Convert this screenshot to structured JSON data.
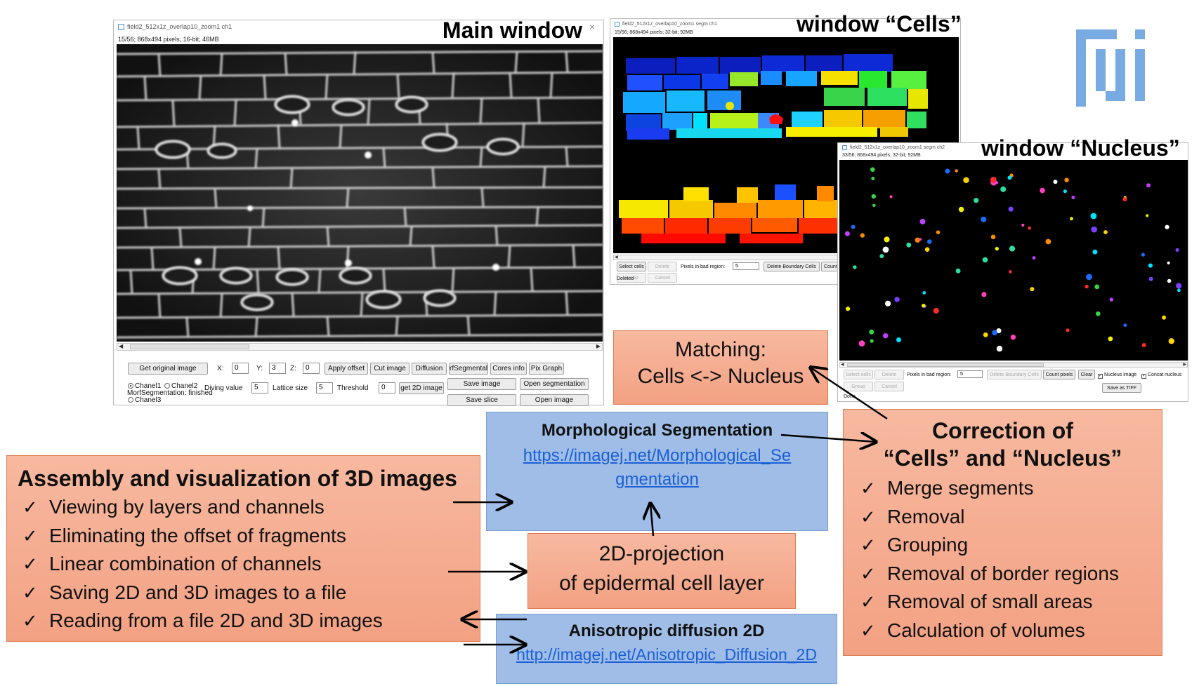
{
  "main_window": {
    "title": "field2_512x1z_overlap10_zoom1 ch1",
    "info": "15/56; 868x494 pixels; 16-bit; 46MB",
    "label": "Main window",
    "close_glyph": "×",
    "buttons": [
      "Get original image",
      "Apply offset",
      "Cut image",
      "Diffusion",
      "rfSegmental",
      "Cores info",
      "Pix Graph",
      "get 2D image",
      "Save image",
      "Open segmentation",
      "Save slice",
      "Open image"
    ],
    "fields": {
      "x_label": "X:",
      "x": "0",
      "y_label": "Y:",
      "y": "3",
      "z_label": "Z:",
      "z": "0",
      "diving_label": "Diving value",
      "diving": "5",
      "lattice_label": "Lattice size",
      "lattice": "5",
      "threshold_label": "Threshold",
      "threshold": "0"
    },
    "channels": [
      "Chanel1",
      "Chanel2",
      "Chanel3"
    ],
    "status": "MorfSegmentation: finished"
  },
  "cells_window": {
    "title": "field2_512x1z_overlap10_zoom1 segm ch1",
    "info": "15/56; 868x494 pixels; 32-bit; 92MB",
    "label": "window “Cells”",
    "buttons": [
      "Select cells",
      "Delete",
      "Group",
      "Cancel",
      "Delete Boundary Cells",
      "Count p"
    ],
    "pixels_label": "Pixels in bad region:",
    "pixels_value": "5",
    "status": "Deleted"
  },
  "nucleus_window": {
    "title": "field2_512x1z_overlap10_zoom1 segm ch2",
    "info": "33/56; 868x494 pixels; 32-bit; 92MB",
    "label": "window “Nucleus”",
    "buttons": [
      "Select cells",
      "Delete",
      "Group",
      "Cancel",
      "Delete Boundary Cells",
      "Count pixels",
      "Clear",
      "Save as TIFF"
    ],
    "checkboxes": [
      "Nucleus image",
      "Concat nucleus"
    ],
    "pixels_label": "Pixels in bad region:",
    "pixels_value": "5",
    "status": "Done"
  },
  "boxes": {
    "assembly": {
      "title": "Assembly and visualization of 3D images",
      "items": [
        "Viewing by layers and channels",
        "Eliminating the offset of fragments",
        "Linear combination of channels",
        "Saving 2D and 3D images to a file",
        "Reading from a file 2D and 3D images"
      ]
    },
    "morph": {
      "title": "Morphological Segmentation",
      "link_line1": "https://imagej.net/Morphological_Se",
      "link_line2": "gmentation"
    },
    "projection": {
      "line1": "2D-projection",
      "line2": "of epidermal cell layer"
    },
    "aniso": {
      "title": "Anisotropic diffusion 2D",
      "link": "http://imagej.net/Anisotropic_Diffusion_2D"
    },
    "matching": {
      "line1": "Matching:",
      "line2": "Cells <-> Nucleus"
    },
    "correction": {
      "title_line1": "Correction of",
      "title_line2": "“Cells” and “Nucleus”",
      "items": [
        "Merge segments",
        "Removal",
        "Grouping",
        "Removal of border regions",
        "Removal of small areas",
        "Calculation of volumes"
      ]
    }
  },
  "colors": {
    "orange_box": "#f5a889",
    "blue_box": "#9fbde6",
    "fiji_blue": "#4a90d9",
    "link": "#1a5fd6"
  },
  "icons": [
    "fiji-logo-icon",
    "check-icon",
    "arrow-icon"
  ]
}
